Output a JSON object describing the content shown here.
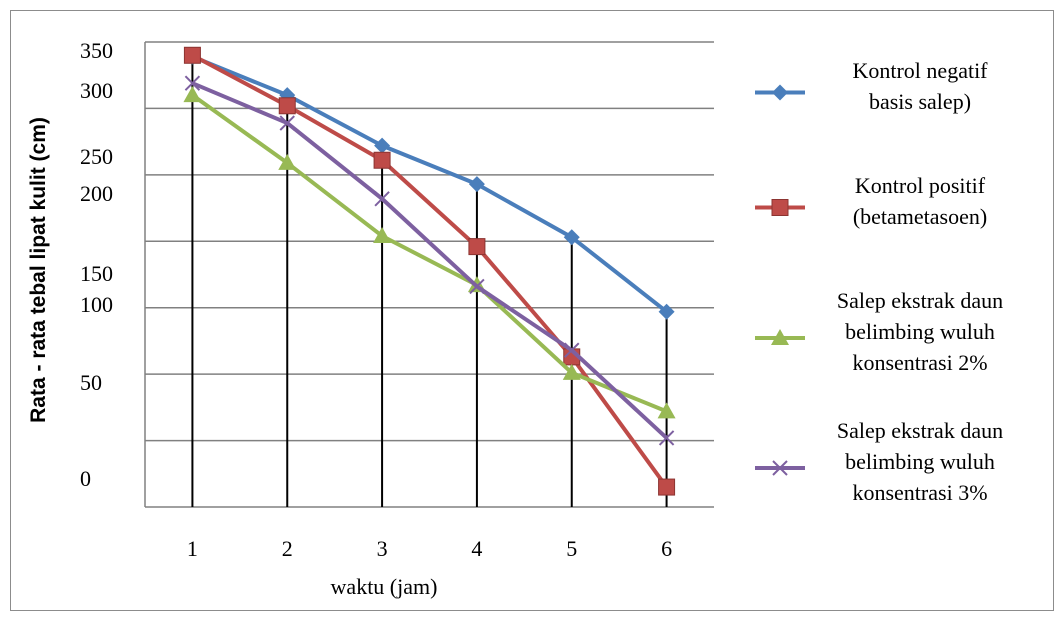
{
  "chart_data": {
    "type": "line",
    "title": "",
    "xlabel": "waktu (jam)",
    "ylabel": "Rata - rata tebal lipat kulit (cm)",
    "categories": [
      "1",
      "2",
      "3",
      "4",
      "5",
      "6"
    ],
    "y_tick_labels": [
      "0",
      "50",
      "100",
      "150",
      "200",
      "250",
      "300",
      "350"
    ],
    "ylim": [
      0,
      350
    ],
    "grid": "horizontal",
    "legend_position": "right",
    "series": [
      {
        "name": "Kontrol negatif basis salep)",
        "legend_lines": [
          "Kontrol negatif",
          "basis salep)"
        ],
        "color": "#4a7ebb",
        "marker": "diamond",
        "values": [
          339,
          310,
          272,
          243,
          203,
          147
        ]
      },
      {
        "name": "Kontrol positif (betametasoen)",
        "legend_lines": [
          "Kontrol positif",
          "(betametasoen)"
        ],
        "color": "#be4b48",
        "marker": "square",
        "values": [
          340,
          302,
          261,
          196,
          113,
          15
        ]
      },
      {
        "name": "Salep ekstrak daun belimbing wuluh konsentrasi 2%",
        "legend_lines": [
          "Salep ekstrak daun",
          "belimbing wuluh",
          "konsentrasi 2%"
        ],
        "color": "#98b954",
        "marker": "triangle",
        "values": [
          310,
          259,
          204,
          167,
          101,
          72
        ]
      },
      {
        "name": "Salep ekstrak daun belimbing wuluh konsentrasi 3%",
        "legend_lines": [
          "Salep ekstrak daun",
          "belimbing wuluh",
          "konsentrasi 3%"
        ],
        "color": "#7d60a0",
        "marker": "x",
        "values": [
          319,
          289,
          232,
          166,
          118,
          52
        ]
      }
    ]
  }
}
